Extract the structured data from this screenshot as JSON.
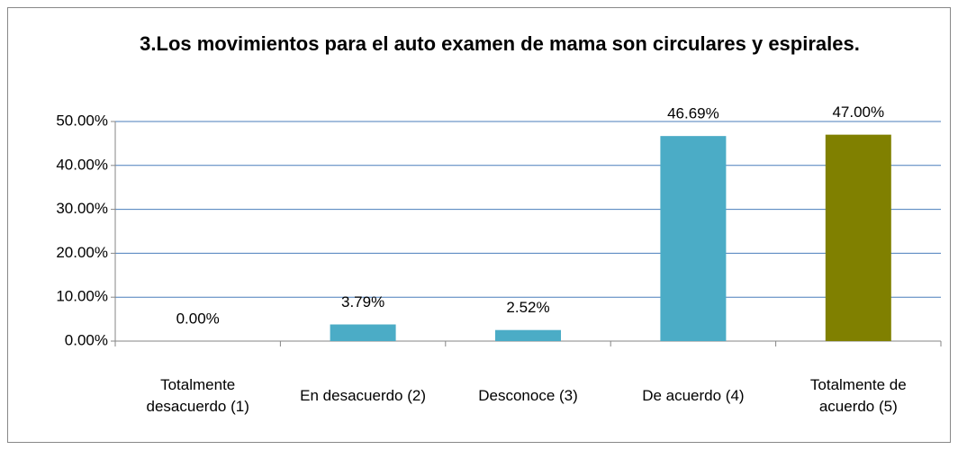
{
  "chart_data": {
    "type": "bar",
    "title": "3.Los movimientos para el auto examen de mama son circulares y espirales.",
    "categories": [
      "Totalmente desacuerdo (1)",
      "En desacuerdo (2)",
      "Desconoce (3)",
      "De acuerdo (4)",
      "Totalmente de acuerdo (5)"
    ],
    "values": [
      0,
      3.79,
      2.52,
      46.69,
      47.0
    ],
    "value_labels": [
      "0.00%",
      "3.79%",
      "2.52%",
      "46.69%",
      "47.00%"
    ],
    "colors": [
      "#4bacc6",
      "#4bacc6",
      "#4bacc6",
      "#4bacc6",
      "#808000"
    ],
    "ylim": [
      0,
      50
    ],
    "yticks": [
      {
        "value": 0,
        "label": "0.00%"
      },
      {
        "value": 10,
        "label": "10.00%"
      },
      {
        "value": 20,
        "label": "20.00%"
      },
      {
        "value": 30,
        "label": "30.00%"
      },
      {
        "value": 40,
        "label": "40.00%"
      },
      {
        "value": 50,
        "label": "50.00%"
      }
    ],
    "grid": true
  }
}
